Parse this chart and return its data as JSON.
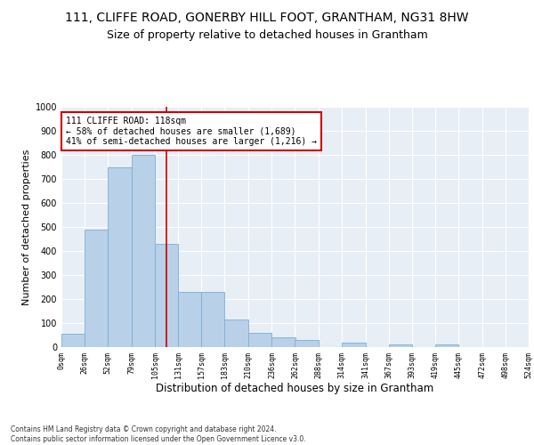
{
  "title1": "111, CLIFFE ROAD, GONERBY HILL FOOT, GRANTHAM, NG31 8HW",
  "title2": "Size of property relative to detached houses in Grantham",
  "xlabel": "Distribution of detached houses by size in Grantham",
  "ylabel": "Number of detached properties",
  "footnote": "Contains HM Land Registry data © Crown copyright and database right 2024.\nContains public sector information licensed under the Open Government Licence v3.0.",
  "bin_labels": [
    "0sqm",
    "26sqm",
    "52sqm",
    "79sqm",
    "105sqm",
    "131sqm",
    "157sqm",
    "183sqm",
    "210sqm",
    "236sqm",
    "262sqm",
    "288sqm",
    "314sqm",
    "341sqm",
    "367sqm",
    "393sqm",
    "419sqm",
    "445sqm",
    "472sqm",
    "498sqm",
    "524sqm"
  ],
  "bin_edges": [
    0,
    26,
    52,
    79,
    105,
    131,
    157,
    183,
    210,
    236,
    262,
    288,
    314,
    341,
    367,
    393,
    419,
    445,
    472,
    498,
    524
  ],
  "bar_heights": [
    55,
    490,
    750,
    800,
    430,
    230,
    230,
    115,
    60,
    40,
    30,
    0,
    20,
    0,
    10,
    0,
    10,
    0,
    0,
    0
  ],
  "bar_color": "#b8d0e8",
  "bar_edge_color": "#7aafd4",
  "property_value": 118,
  "vline_color": "#cc0000",
  "annotation_text": "111 CLIFFE ROAD: 118sqm\n← 58% of detached houses are smaller (1,689)\n41% of semi-detached houses are larger (1,216) →",
  "annotation_box_color": "#ffffff",
  "annotation_box_edge_color": "#cc0000",
  "ylim": [
    0,
    1000
  ],
  "yticks": [
    0,
    100,
    200,
    300,
    400,
    500,
    600,
    700,
    800,
    900,
    1000
  ],
  "bg_color": "#ffffff",
  "plot_bg_color": "#e8eef5",
  "grid_color": "#ffffff",
  "title1_fontsize": 10,
  "title2_fontsize": 9,
  "xlabel_fontsize": 8.5,
  "ylabel_fontsize": 8
}
